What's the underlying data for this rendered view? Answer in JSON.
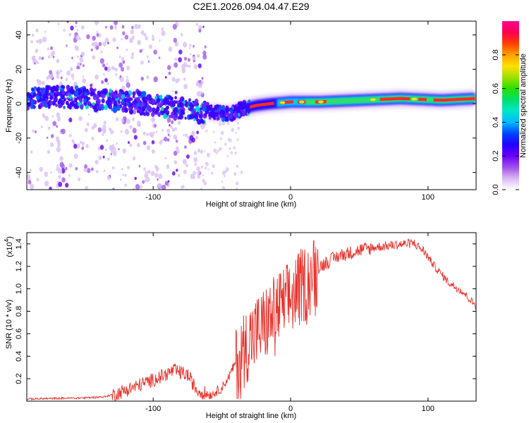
{
  "chart_data": [
    {
      "type": "heatmap",
      "title": "C2E1.2026.094.04.47.E29",
      "xlabel": "Height of straight line (km)",
      "ylabel": "Frequency (Hz)",
      "xlim": [
        -192,
        135
      ],
      "ylim": [
        -50,
        48
      ],
      "x_ticks": [
        {
          "value": -100,
          "label": "-100"
        },
        {
          "value": 0,
          "label": "0"
        },
        {
          "value": 100,
          "label": "100"
        }
      ],
      "y_ticks": [
        {
          "value": -40,
          "label": "-40"
        },
        {
          "value": -20,
          "label": "-20"
        },
        {
          "value": 0,
          "label": "0"
        },
        {
          "value": 20,
          "label": "20"
        },
        {
          "value": 40,
          "label": "40"
        }
      ],
      "colorbar": {
        "label": "Normalized spectral amplitude",
        "range": [
          0,
          1
        ],
        "colors": [
          "#ffffff",
          "#d9b8f2",
          "#a050e8",
          "#6a00ff",
          "#2200ff",
          "#0044ff",
          "#00b8ff",
          "#00e6c8",
          "#00e070",
          "#28e000",
          "#a0e000",
          "#ffe000",
          "#ffa000",
          "#ff4000",
          "#ff0050",
          "#ff0090"
        ],
        "ticks": [
          {
            "value": 0.0,
            "label": "0.0"
          },
          {
            "value": 0.2,
            "label": "0.2"
          },
          {
            "value": 0.4,
            "label": "0.4"
          },
          {
            "value": 0.6,
            "label": "0.6"
          },
          {
            "value": 0.8,
            "label": "0.8"
          }
        ]
      },
      "ridge": [
        {
          "x": -190,
          "f": 4
        },
        {
          "x": -170,
          "f": 4
        },
        {
          "x": -150,
          "f": 3
        },
        {
          "x": -130,
          "f": 2
        },
        {
          "x": -110,
          "f": 0
        },
        {
          "x": -95,
          "f": -1
        },
        {
          "x": -80,
          "f": -3
        },
        {
          "x": -65,
          "f": -5
        },
        {
          "x": -55,
          "f": -5
        },
        {
          "x": -45,
          "f": -6
        },
        {
          "x": -35,
          "f": -3
        },
        {
          "x": -25,
          "f": -1
        },
        {
          "x": -15,
          "f": 0
        },
        {
          "x": 0,
          "f": 1
        },
        {
          "x": 20,
          "f": 1
        },
        {
          "x": 50,
          "f": 2
        },
        {
          "x": 80,
          "f": 3
        },
        {
          "x": 110,
          "f": 2
        },
        {
          "x": 135,
          "f": 3
        }
      ]
    },
    {
      "type": "line",
      "xlabel": "Height of straight line (km)",
      "ylabel": "SNR (10 * v/v)",
      "y_multiplier": "(x10",
      "y_multiplier_exp": "4",
      "y_multiplier_close": ")",
      "xlim": [
        -192,
        135
      ],
      "ylim": [
        0,
        1.5
      ],
      "x_ticks": [
        {
          "value": -100,
          "label": "-100"
        },
        {
          "value": 0,
          "label": "0"
        },
        {
          "value": 100,
          "label": "100"
        }
      ],
      "y_ticks": [
        {
          "value": 0.2,
          "label": "0.2"
        },
        {
          "value": 0.4,
          "label": "0.4"
        },
        {
          "value": 0.6,
          "label": "0.6"
        },
        {
          "value": 0.8,
          "label": "0.8"
        },
        {
          "value": 1.0,
          "label": "1.0"
        },
        {
          "value": 1.2,
          "label": "1.2"
        },
        {
          "value": 1.4,
          "label": "1.4"
        }
      ],
      "series": [
        {
          "name": "SNR",
          "color": "#e8302a",
          "envelope": [
            {
              "x": -192,
              "y": 0.02
            },
            {
              "x": -150,
              "y": 0.03
            },
            {
              "x": -135,
              "y": 0.04
            },
            {
              "x": -125,
              "y": 0.08
            },
            {
              "x": -110,
              "y": 0.15
            },
            {
              "x": -95,
              "y": 0.22
            },
            {
              "x": -85,
              "y": 0.28
            },
            {
              "x": -75,
              "y": 0.24
            },
            {
              "x": -68,
              "y": 0.1
            },
            {
              "x": -58,
              "y": 0.06
            },
            {
              "x": -50,
              "y": 0.12
            },
            {
              "x": -45,
              "y": 0.22
            },
            {
              "x": -38,
              "y": 0.4
            },
            {
              "x": -30,
              "y": 0.58
            },
            {
              "x": -20,
              "y": 0.7
            },
            {
              "x": -10,
              "y": 0.84
            },
            {
              "x": 0,
              "y": 0.95
            },
            {
              "x": 10,
              "y": 1.08
            },
            {
              "x": 20,
              "y": 1.2
            },
            {
              "x": 35,
              "y": 1.3
            },
            {
              "x": 50,
              "y": 1.35
            },
            {
              "x": 65,
              "y": 1.38
            },
            {
              "x": 80,
              "y": 1.4
            },
            {
              "x": 90,
              "y": 1.41
            },
            {
              "x": 97,
              "y": 1.34
            },
            {
              "x": 105,
              "y": 1.2
            },
            {
              "x": 115,
              "y": 1.06
            },
            {
              "x": 125,
              "y": 0.98
            },
            {
              "x": 135,
              "y": 0.85
            }
          ]
        }
      ]
    }
  ]
}
